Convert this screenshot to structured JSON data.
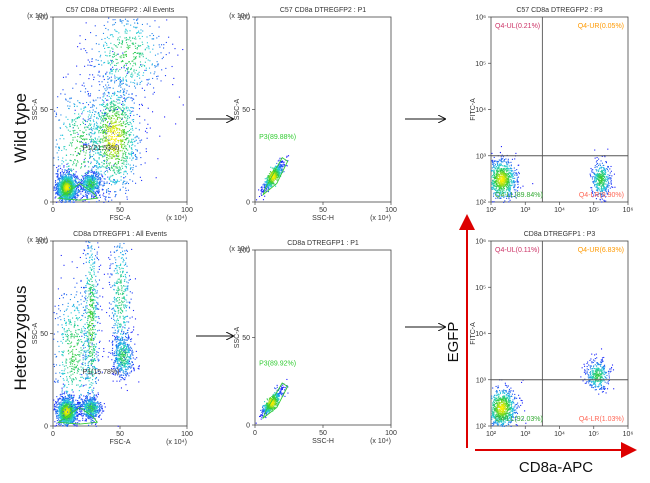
{
  "rows": {
    "wild_type": "Wild type",
    "heterozygous": "Heterozygous"
  },
  "axis_titles": {
    "egfp": "EGFP",
    "cd8a_apc": "CD8a-APC"
  },
  "colors": {
    "density_low": "#1a1aff",
    "density_mid": "#22ccdd",
    "density_high": "#33cc33",
    "density_peak": "#ffee00",
    "gate_green": "#33cc33",
    "ul_text": "#cc3366",
    "ur_text": "#ff9900",
    "ll_text": "#33aa33",
    "lr_text": "#ff6655",
    "quadrant_line": "#555555",
    "arrow_red": "#dd0000"
  },
  "chart_data": [
    {
      "type": "scatter",
      "title": "C57 CD8a DTREGFP2 : All Events",
      "xlabel": "FSC-A",
      "ylabel": "SSC-A",
      "x_ticks": [
        "0",
        "50",
        "100"
      ],
      "y_ticks": [
        "0",
        "50",
        "100"
      ],
      "x_scale": "(x 10⁴)",
      "y_scale": "(x 10⁴)",
      "xlim": [
        0,
        100
      ],
      "ylim": [
        0,
        100
      ],
      "gates": [
        {
          "name": "P1",
          "label": "P1(21.53%)",
          "percent": 21.53
        }
      ],
      "populations": [
        {
          "x": 10,
          "y": 8,
          "sx": 4,
          "sy": 4,
          "n": 1100
        },
        {
          "x": 28,
          "y": 10,
          "sx": 4,
          "sy": 3,
          "n": 500
        },
        {
          "x": 45,
          "y": 35,
          "sx": 10,
          "sy": 16,
          "n": 1100
        },
        {
          "x": 55,
          "y": 80,
          "sx": 15,
          "sy": 12,
          "n": 500
        },
        {
          "x": 20,
          "y": 30,
          "sx": 12,
          "sy": 18,
          "n": 500
        }
      ]
    },
    {
      "type": "scatter",
      "title": "C57 CD8a DTREGFP2 : P1",
      "xlabel": "SSC-H",
      "ylabel": "SSC-A",
      "x_ticks": [
        "0",
        "50",
        "100"
      ],
      "y_ticks": [
        "0",
        "50",
        "100"
      ],
      "x_scale": "(x 10⁴)",
      "y_scale": "(x 10⁴)",
      "xlim": [
        0,
        100
      ],
      "ylim": [
        0,
        100
      ],
      "gates": [
        {
          "name": "P3",
          "label": "P3(89.88%)",
          "percent": 89.88
        }
      ],
      "populations": [
        {
          "x": 13,
          "y": 14,
          "sx": 4,
          "sy": 4,
          "n": 500,
          "rho": 0.85
        }
      ]
    },
    {
      "type": "scatter",
      "title": "C57 CD8a DTREGFP2 : P3",
      "xlabel": "",
      "ylabel": "FITC-A",
      "x_ticks": [
        "10²",
        "10³",
        "10⁴",
        "10⁵",
        "10⁶"
      ],
      "y_ticks": [
        "10²",
        "10³",
        "10⁴",
        "10⁵",
        "10⁶"
      ],
      "xlim": [
        2,
        6
      ],
      "ylim": [
        2,
        6
      ],
      "scale": "log",
      "quadrants": [
        {
          "name": "Q4-UL",
          "label": "Q4-UL(0.21%)",
          "percent": 0.21
        },
        {
          "name": "Q4-UR",
          "label": "Q4-UR(0.05%)",
          "percent": 0.05
        },
        {
          "name": "Q4-LL",
          "label": "Q4-LL(89.84%)",
          "percent": 89.84
        },
        {
          "name": "Q4-LR",
          "label": "Q4-LR(9.90%)",
          "percent": 9.9
        }
      ],
      "populations": [
        {
          "x": 2.3,
          "y": 2.5,
          "sx": 0.22,
          "sy": 0.22,
          "n": 800
        },
        {
          "x": 5.2,
          "y": 2.5,
          "sx": 0.14,
          "sy": 0.2,
          "n": 400
        }
      ]
    },
    {
      "type": "scatter",
      "title": "CD8a DTREGFP1 : All Events",
      "xlabel": "FSC-A",
      "ylabel": "SSC-A",
      "x_ticks": [
        "0",
        "50",
        "100"
      ],
      "y_ticks": [
        "0",
        "50",
        "100"
      ],
      "x_scale": "(x 10⁴)",
      "y_scale": "(x 10⁴)",
      "xlim": [
        0,
        100
      ],
      "ylim": [
        0,
        100
      ],
      "gates": [
        {
          "name": "P1",
          "label": "P1(15.78%)",
          "percent": 15.78
        }
      ],
      "populations": [
        {
          "x": 10,
          "y": 8,
          "sx": 4,
          "sy": 4,
          "n": 1100
        },
        {
          "x": 28,
          "y": 10,
          "sx": 4,
          "sy": 3,
          "n": 500
        },
        {
          "x": 52,
          "y": 38,
          "sx": 4,
          "sy": 6,
          "n": 450
        },
        {
          "x": 50,
          "y": 70,
          "sx": 4,
          "sy": 20,
          "n": 400
        },
        {
          "x": 28,
          "y": 55,
          "sx": 3,
          "sy": 30,
          "n": 600
        },
        {
          "x": 15,
          "y": 40,
          "sx": 8,
          "sy": 20,
          "n": 500
        }
      ]
    },
    {
      "type": "scatter",
      "title": "CD8a DTREGFP1 : P1",
      "xlabel": "SSC-H",
      "ylabel": "SSC-A",
      "x_ticks": [
        "0",
        "50",
        "100"
      ],
      "y_ticks": [
        "0",
        "50",
        "100"
      ],
      "x_scale": "(x 10⁴)",
      "y_scale": "(x 10⁴)",
      "xlim": [
        0,
        100
      ],
      "ylim": [
        0,
        100
      ],
      "gates": [
        {
          "name": "P3",
          "label": "P3(89.92%)",
          "percent": 89.92
        }
      ],
      "populations": [
        {
          "x": 12,
          "y": 13,
          "sx": 4,
          "sy": 4,
          "n": 500,
          "rho": 0.85
        }
      ]
    },
    {
      "type": "scatter",
      "title": "CD8a DTREGFP1 : P3",
      "xlabel": "",
      "ylabel": "FITC-A",
      "x_ticks": [
        "10²",
        "10³",
        "10⁴",
        "10⁵",
        "10⁶"
      ],
      "y_ticks": [
        "10²",
        "10³",
        "10⁴",
        "10⁵",
        "10⁶"
      ],
      "xlim": [
        2,
        6
      ],
      "ylim": [
        2,
        6
      ],
      "scale": "log",
      "quadrants": [
        {
          "name": "Q4-UL",
          "label": "Q4-UL(0.11%)",
          "percent": 0.11
        },
        {
          "name": "Q4-UR",
          "label": "Q4-UR(6.83%)",
          "percent": 6.83
        },
        {
          "name": "Q4-LL",
          "label": "Q4-LL(92.03%)",
          "percent": 92.03
        },
        {
          "name": "Q4-LR",
          "label": "Q4-LR(1.03%)",
          "percent": 1.03
        }
      ],
      "populations": [
        {
          "x": 2.3,
          "y": 2.4,
          "sx": 0.22,
          "sy": 0.22,
          "n": 800
        },
        {
          "x": 5.1,
          "y": 3.1,
          "sx": 0.17,
          "sy": 0.17,
          "n": 350
        }
      ]
    }
  ]
}
